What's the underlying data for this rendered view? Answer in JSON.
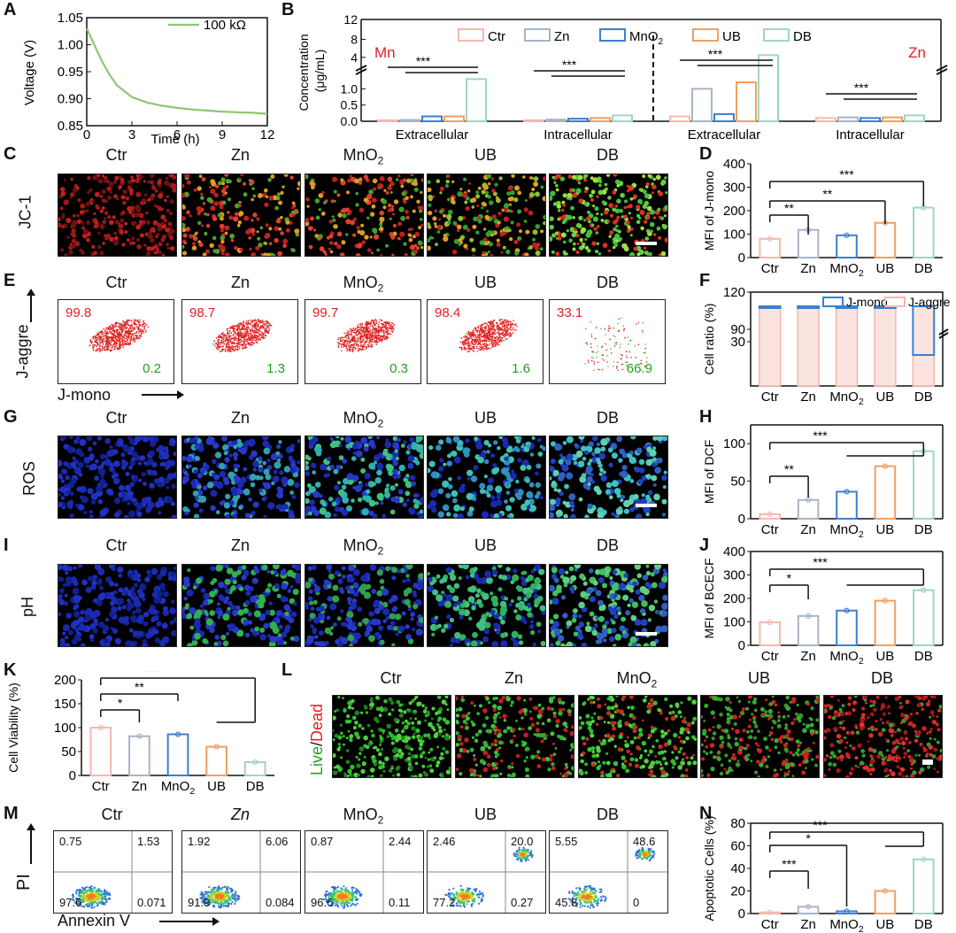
{
  "colors": {
    "ctr": "#f4b8b0",
    "zn": "#a8b4c8",
    "mno2": "#3d7fd0",
    "ub": "#f0a060",
    "db": "#9fd6c0",
    "line_a": "#8cc870",
    "red": "#e02020",
    "green": "#20a020"
  },
  "panels": {
    "A": {
      "letter": "A"
    },
    "B": {
      "letter": "B"
    },
    "C": {
      "letter": "C"
    },
    "D": {
      "letter": "D"
    },
    "E": {
      "letter": "E"
    },
    "F": {
      "letter": "F"
    },
    "G": {
      "letter": "G"
    },
    "H": {
      "letter": "H"
    },
    "I": {
      "letter": "I"
    },
    "J": {
      "letter": "J"
    },
    "K": {
      "letter": "K"
    },
    "L": {
      "letter": "L"
    },
    "M": {
      "letter": "M"
    },
    "N": {
      "letter": "N"
    }
  },
  "groups": [
    "Ctr",
    "Zn",
    "MnO2",
    "UB",
    "DB"
  ],
  "group_labels": {
    "ctr": "Ctr",
    "zn": "Zn",
    "mno2": "MnO",
    "mno2_sub": "2",
    "ub": "UB",
    "db": "DB"
  },
  "row_labels": {
    "C": "JC-1",
    "G": "ROS",
    "I": "pH",
    "L_live": "Live",
    "L_slash": "/",
    "L_dead": "Dead"
  },
  "E_axes": {
    "y": "J-aggre",
    "x": "J-mono"
  },
  "M_axes": {
    "y": "PI",
    "x": "Annexin V"
  },
  "E_values": [
    {
      "top": "99.8",
      "bottom": "0.2"
    },
    {
      "top": "98.7",
      "bottom": "1.3"
    },
    {
      "top": "99.7",
      "bottom": "0.3"
    },
    {
      "top": "98.4",
      "bottom": "1.6"
    },
    {
      "top": "33.1",
      "bottom": "66.9"
    }
  ],
  "M_values": [
    {
      "ul": "0.75",
      "ur": "1.53",
      "ll": "97.6",
      "lr": "0.071"
    },
    {
      "ul": "1.92",
      "ur": "6.06",
      "ll": "91.9",
      "lr": "0.084"
    },
    {
      "ul": "0.87",
      "ur": "2.44",
      "ll": "96.6",
      "lr": "0.11"
    },
    {
      "ul": "2.46",
      "ur": "20.0",
      "ll": "77.2",
      "lr": "0.27"
    },
    {
      "ul": "5.55",
      "ur": "48.6",
      "ll": "45.8",
      "lr": "0"
    }
  ],
  "chart_data": [
    {
      "panel": "A",
      "type": "line",
      "legend": [
        "100 kΩ"
      ],
      "xlabel": "Time (h)",
      "ylabel": "Voltage (V)",
      "xlim": [
        0,
        12
      ],
      "ylim": [
        0.85,
        1.05
      ],
      "xticks": [
        "0",
        "3",
        "6",
        "9",
        "12"
      ],
      "yticks": [
        "0.85",
        "0.90",
        "0.95",
        "1.00",
        "1.05"
      ],
      "x": [
        0,
        0.5,
        1,
        1.5,
        2,
        3,
        4,
        5,
        6,
        7,
        8,
        9,
        10,
        11,
        12
      ],
      "y": [
        1.03,
        1.0,
        0.97,
        0.945,
        0.925,
        0.903,
        0.893,
        0.887,
        0.883,
        0.88,
        0.878,
        0.876,
        0.875,
        0.874,
        0.872
      ]
    },
    {
      "panel": "B",
      "type": "bar",
      "ylabel": "Concentration (μg/mL)",
      "legend": [
        "Ctr",
        "Zn",
        "MnO",
        "UB",
        "DB"
      ],
      "legend_sub": "2",
      "element_labels": [
        "Mn",
        "Zn"
      ],
      "categories": [
        "Extracellular",
        "Intracellular",
        "Extracellular",
        "Intracellular"
      ],
      "yticks_low": [
        "0.0",
        "0.5",
        "1.0"
      ],
      "yticks_high": [
        "4",
        "8",
        "12"
      ],
      "series": [
        {
          "name": "Ctr",
          "values": [
            0.03,
            0.03,
            0.15,
            0.1
          ]
        },
        {
          "name": "Zn",
          "values": [
            0.04,
            0.05,
            1.0,
            0.12
          ]
        },
        {
          "name": "MnO2",
          "values": [
            0.15,
            0.08,
            0.22,
            0.1
          ]
        },
        {
          "name": "UB",
          "values": [
            0.15,
            0.1,
            1.2,
            0.12
          ]
        },
        {
          "name": "DB",
          "values": [
            1.3,
            0.18,
            4.8,
            0.18
          ]
        }
      ],
      "sig": [
        "***",
        "***",
        "***",
        "***"
      ]
    },
    {
      "panel": "D",
      "type": "bar",
      "ylabel": "MFI of J-mono",
      "ylim": [
        0,
        400
      ],
      "yticks": [
        "0",
        "100",
        "200",
        "300",
        "400"
      ],
      "categories": [
        "Ctr",
        "Zn",
        "MnO2",
        "UB",
        "DB"
      ],
      "values": [
        80,
        118,
        95,
        148,
        213
      ],
      "sig": [
        "**",
        "**",
        "***"
      ]
    },
    {
      "panel": "F",
      "type": "bar",
      "ylabel": "Cell ratio (%)",
      "legend": [
        "J-mono",
        "J-aggre"
      ],
      "yticks": [
        "30",
        "90",
        "120"
      ],
      "categories": [
        "Ctr",
        "Zn",
        "MnO2",
        "UB",
        "DB"
      ],
      "series": [
        {
          "name": "J-mono",
          "values": [
            0.2,
            1.3,
            0.3,
            1.6,
            66.9
          ]
        },
        {
          "name": "J-aggre",
          "values": [
            99.8,
            98.7,
            99.7,
            98.4,
            33.1
          ]
        }
      ]
    },
    {
      "panel": "H",
      "type": "bar",
      "ylabel": "MFI of DCF",
      "ylim": [
        0,
        125
      ],
      "yticks": [
        "0",
        "50",
        "100"
      ],
      "categories": [
        "Ctr",
        "Zn",
        "MnO2",
        "UB",
        "DB"
      ],
      "values": [
        6,
        25,
        36,
        70,
        90
      ],
      "sig": [
        "**",
        "***"
      ]
    },
    {
      "panel": "J",
      "type": "bar",
      "ylabel": "MFI of BCECF",
      "ylim": [
        0,
        400
      ],
      "yticks": [
        "0",
        "100",
        "200",
        "300",
        "400"
      ],
      "categories": [
        "Ctr",
        "Zn",
        "MnO2",
        "UB",
        "DB"
      ],
      "values": [
        98,
        125,
        148,
        190,
        235
      ],
      "sig": [
        "*",
        "***"
      ]
    },
    {
      "panel": "K",
      "type": "bar",
      "ylabel": "Cell Viability (%)",
      "ylim": [
        0,
        200
      ],
      "yticks": [
        "0",
        "50",
        "100",
        "150",
        "200"
      ],
      "categories": [
        "Ctr",
        "Zn",
        "MnO2",
        "UB",
        "DB"
      ],
      "values": [
        100,
        82,
        86,
        60,
        28
      ],
      "sig": [
        "*",
        "**",
        "***"
      ]
    },
    {
      "panel": "N",
      "type": "bar",
      "ylabel": "Apoptotic Cells (%)",
      "ylim": [
        0,
        80
      ],
      "yticks": [
        "0",
        "20",
        "40",
        "60",
        "80"
      ],
      "categories": [
        "Ctr",
        "Zn",
        "MnO2",
        "UB",
        "DB"
      ],
      "values": [
        1,
        6,
        2,
        20,
        48
      ],
      "sig": [
        "***",
        "*",
        "***"
      ]
    }
  ]
}
